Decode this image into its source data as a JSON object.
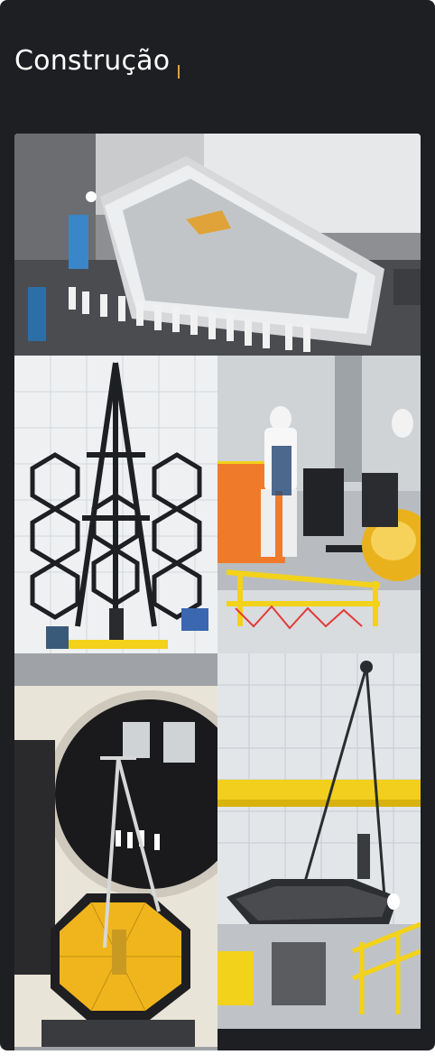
{
  "section": {
    "title": "Construção",
    "accent_color": "#e0a33a",
    "background": "#1e1f22"
  },
  "gallery": {
    "photos": [
      {
        "subject": "sunshield-layers-icon"
      },
      {
        "subject": "backplane-frame-icon"
      },
      {
        "subject": "technician-mirror-icon"
      },
      {
        "subject": "vacuum-chamber-telescope-icon"
      },
      {
        "subject": "mirror-assembly-crane-icon"
      }
    ]
  }
}
